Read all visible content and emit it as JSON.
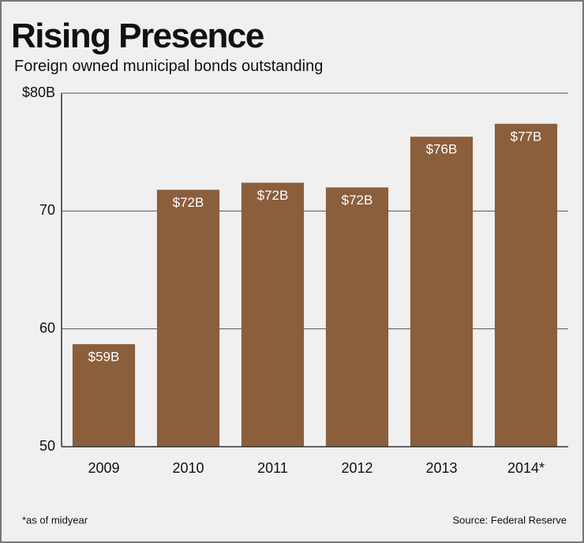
{
  "chart_data": {
    "type": "bar",
    "title": "Rising Presence",
    "subtitle": "Foreign owned municipal bonds outstanding",
    "categories": [
      "2009",
      "2010",
      "2011",
      "2012",
      "2013",
      "2014*"
    ],
    "values": [
      58.7,
      71.8,
      72.4,
      72.0,
      76.3,
      77.4
    ],
    "value_labels": [
      "$59B",
      "$72B",
      "$72B",
      "$72B",
      "$76B",
      "$77B"
    ],
    "color": "#8b5e3c",
    "ylim": [
      50,
      80
    ],
    "yticks": [
      50,
      60,
      70,
      {
        "value": 80,
        "label": "$80B"
      }
    ],
    "grid": true,
    "footnote": "*as of midyear",
    "source": "Source: Federal Reserve"
  }
}
